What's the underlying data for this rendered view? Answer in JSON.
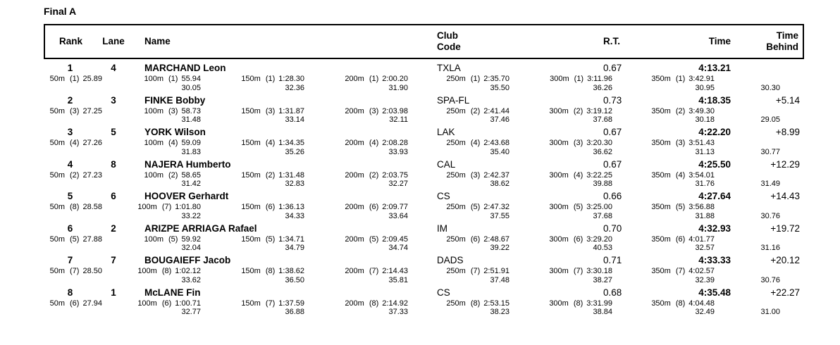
{
  "title": "Final A",
  "header": {
    "rank": "Rank",
    "lane": "Lane",
    "name": "Name",
    "club": [
      "Club",
      "Code"
    ],
    "rt": "R.T.",
    "time": "Time",
    "behind": [
      "Time",
      "Behind"
    ]
  },
  "results": [
    {
      "rank": "1",
      "lane": "4",
      "name": "MARCHAND Leon",
      "club": "TXLA",
      "rt": "0.67",
      "time": "4:13.21",
      "behind": "",
      "last_lap": "30.30",
      "splits": [
        {
          "distance": "50m",
          "place": "(1)",
          "time": "25.89",
          "lap": ""
        },
        {
          "distance": "100m",
          "place": "(1)",
          "time": "55.94",
          "lap": "30.05"
        },
        {
          "distance": "150m",
          "place": "(1)",
          "time": "1:28.30",
          "lap": "32.36"
        },
        {
          "distance": "200m",
          "place": "(1)",
          "time": "2:00.20",
          "lap": "31.90"
        },
        {
          "distance": "250m",
          "place": "(1)",
          "time": "2:35.70",
          "lap": "35.50"
        },
        {
          "distance": "300m",
          "place": "(1)",
          "time": "3:11.96",
          "lap": "36.26"
        },
        {
          "distance": "350m",
          "place": "(1)",
          "time": "3:42.91",
          "lap": "30.95"
        }
      ]
    },
    {
      "rank": "2",
      "lane": "3",
      "name": "FINKE Bobby",
      "club": "SPA-FL",
      "rt": "0.73",
      "time": "4:18.35",
      "behind": "+5.14",
      "last_lap": "29.05",
      "splits": [
        {
          "distance": "50m",
          "place": "(3)",
          "time": "27.25",
          "lap": ""
        },
        {
          "distance": "100m",
          "place": "(3)",
          "time": "58.73",
          "lap": "31.48"
        },
        {
          "distance": "150m",
          "place": "(3)",
          "time": "1:31.87",
          "lap": "33.14"
        },
        {
          "distance": "200m",
          "place": "(3)",
          "time": "2:03.98",
          "lap": "32.11"
        },
        {
          "distance": "250m",
          "place": "(2)",
          "time": "2:41.44",
          "lap": "37.46"
        },
        {
          "distance": "300m",
          "place": "(2)",
          "time": "3:19.12",
          "lap": "37.68"
        },
        {
          "distance": "350m",
          "place": "(2)",
          "time": "3:49.30",
          "lap": "30.18"
        }
      ]
    },
    {
      "rank": "3",
      "lane": "5",
      "name": "YORK Wilson",
      "club": "LAK",
      "rt": "0.67",
      "time": "4:22.20",
      "behind": "+8.99",
      "last_lap": "30.77",
      "splits": [
        {
          "distance": "50m",
          "place": "(4)",
          "time": "27.26",
          "lap": ""
        },
        {
          "distance": "100m",
          "place": "(4)",
          "time": "59.09",
          "lap": "31.83"
        },
        {
          "distance": "150m",
          "place": "(4)",
          "time": "1:34.35",
          "lap": "35.26"
        },
        {
          "distance": "200m",
          "place": "(4)",
          "time": "2:08.28",
          "lap": "33.93"
        },
        {
          "distance": "250m",
          "place": "(4)",
          "time": "2:43.68",
          "lap": "35.40"
        },
        {
          "distance": "300m",
          "place": "(3)",
          "time": "3:20.30",
          "lap": "36.62"
        },
        {
          "distance": "350m",
          "place": "(3)",
          "time": "3:51.43",
          "lap": "31.13"
        }
      ]
    },
    {
      "rank": "4",
      "lane": "8",
      "name": "NAJERA Humberto",
      "club": "CAL",
      "rt": "0.67",
      "time": "4:25.50",
      "behind": "+12.29",
      "last_lap": "31.49",
      "splits": [
        {
          "distance": "50m",
          "place": "(2)",
          "time": "27.23",
          "lap": ""
        },
        {
          "distance": "100m",
          "place": "(2)",
          "time": "58.65",
          "lap": "31.42"
        },
        {
          "distance": "150m",
          "place": "(2)",
          "time": "1:31.48",
          "lap": "32.83"
        },
        {
          "distance": "200m",
          "place": "(2)",
          "time": "2:03.75",
          "lap": "32.27"
        },
        {
          "distance": "250m",
          "place": "(3)",
          "time": "2:42.37",
          "lap": "38.62"
        },
        {
          "distance": "300m",
          "place": "(4)",
          "time": "3:22.25",
          "lap": "39.88"
        },
        {
          "distance": "350m",
          "place": "(4)",
          "time": "3:54.01",
          "lap": "31.76"
        }
      ]
    },
    {
      "rank": "5",
      "lane": "6",
      "name": "HOOVER Gerhardt",
      "club": "CS",
      "rt": "0.66",
      "time": "4:27.64",
      "behind": "+14.43",
      "last_lap": "30.76",
      "splits": [
        {
          "distance": "50m",
          "place": "(8)",
          "time": "28.58",
          "lap": ""
        },
        {
          "distance": "100m",
          "place": "(7)",
          "time": "1:01.80",
          "lap": "33.22"
        },
        {
          "distance": "150m",
          "place": "(6)",
          "time": "1:36.13",
          "lap": "34.33"
        },
        {
          "distance": "200m",
          "place": "(6)",
          "time": "2:09.77",
          "lap": "33.64"
        },
        {
          "distance": "250m",
          "place": "(5)",
          "time": "2:47.32",
          "lap": "37.55"
        },
        {
          "distance": "300m",
          "place": "(5)",
          "time": "3:25.00",
          "lap": "37.68"
        },
        {
          "distance": "350m",
          "place": "(5)",
          "time": "3:56.88",
          "lap": "31.88"
        }
      ]
    },
    {
      "rank": "6",
      "lane": "2",
      "name": "ARIZPE ARRIAGA Rafael",
      "club": "IM",
      "rt": "0.70",
      "time": "4:32.93",
      "behind": "+19.72",
      "last_lap": "31.16",
      "splits": [
        {
          "distance": "50m",
          "place": "(5)",
          "time": "27.88",
          "lap": ""
        },
        {
          "distance": "100m",
          "place": "(5)",
          "time": "59.92",
          "lap": "32.04"
        },
        {
          "distance": "150m",
          "place": "(5)",
          "time": "1:34.71",
          "lap": "34.79"
        },
        {
          "distance": "200m",
          "place": "(5)",
          "time": "2:09.45",
          "lap": "34.74"
        },
        {
          "distance": "250m",
          "place": "(6)",
          "time": "2:48.67",
          "lap": "39.22"
        },
        {
          "distance": "300m",
          "place": "(6)",
          "time": "3:29.20",
          "lap": "40.53"
        },
        {
          "distance": "350m",
          "place": "(6)",
          "time": "4:01.77",
          "lap": "32.57"
        }
      ]
    },
    {
      "rank": "7",
      "lane": "7",
      "name": "BOUGAIEFF Jacob",
      "club": "DADS",
      "rt": "0.71",
      "time": "4:33.33",
      "behind": "+20.12",
      "last_lap": "30.76",
      "splits": [
        {
          "distance": "50m",
          "place": "(7)",
          "time": "28.50",
          "lap": ""
        },
        {
          "distance": "100m",
          "place": "(8)",
          "time": "1:02.12",
          "lap": "33.62"
        },
        {
          "distance": "150m",
          "place": "(8)",
          "time": "1:38.62",
          "lap": "36.50"
        },
        {
          "distance": "200m",
          "place": "(7)",
          "time": "2:14.43",
          "lap": "35.81"
        },
        {
          "distance": "250m",
          "place": "(7)",
          "time": "2:51.91",
          "lap": "37.48"
        },
        {
          "distance": "300m",
          "place": "(7)",
          "time": "3:30.18",
          "lap": "38.27"
        },
        {
          "distance": "350m",
          "place": "(7)",
          "time": "4:02.57",
          "lap": "32.39"
        }
      ]
    },
    {
      "rank": "8",
      "lane": "1",
      "name": "McLANE Fin",
      "club": "CS",
      "rt": "0.68",
      "time": "4:35.48",
      "behind": "+22.27",
      "last_lap": "31.00",
      "splits": [
        {
          "distance": "50m",
          "place": "(6)",
          "time": "27.94",
          "lap": ""
        },
        {
          "distance": "100m",
          "place": "(6)",
          "time": "1:00.71",
          "lap": "32.77"
        },
        {
          "distance": "150m",
          "place": "(7)",
          "time": "1:37.59",
          "lap": "36.88"
        },
        {
          "distance": "200m",
          "place": "(8)",
          "time": "2:14.92",
          "lap": "37.33"
        },
        {
          "distance": "250m",
          "place": "(8)",
          "time": "2:53.15",
          "lap": "38.23"
        },
        {
          "distance": "300m",
          "place": "(8)",
          "time": "3:31.99",
          "lap": "38.84"
        },
        {
          "distance": "350m",
          "place": "(8)",
          "time": "4:04.48",
          "lap": "32.49"
        }
      ]
    }
  ]
}
